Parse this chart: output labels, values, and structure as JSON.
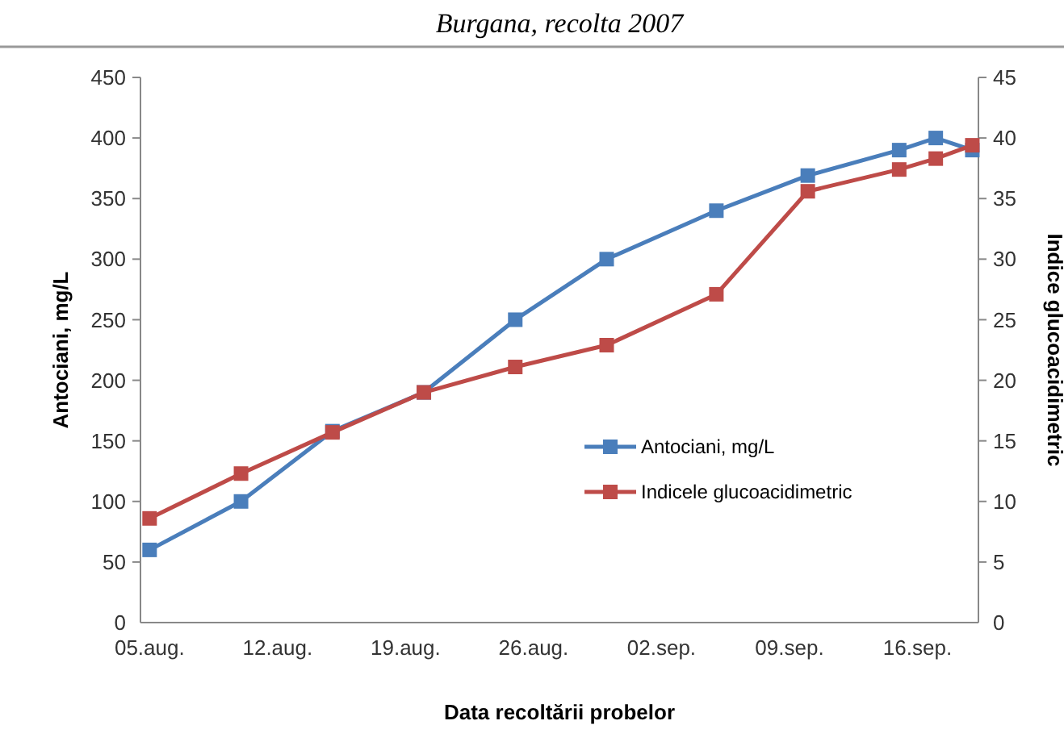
{
  "chart_data": {
    "type": "line",
    "title": "Burgana, recolta 2007",
    "xlabel": "Data recoltării probelor",
    "ylabel": "Antociani, mg/L",
    "y2label": "Indice glucoacidimetric",
    "x": [
      "2007-08-05",
      "2007-08-10",
      "2007-08-15",
      "2007-08-20",
      "2007-08-25",
      "2007-08-30",
      "2007-09-05",
      "2007-09-10",
      "2007-09-15",
      "2007-09-17",
      "2007-09-19"
    ],
    "series": [
      {
        "name": "Antociani, mg/L",
        "color": "#4a7ebb",
        "values": [
          60,
          100,
          158,
          190,
          250,
          300,
          340,
          369,
          390,
          400,
          390
        ]
      },
      {
        "name": "Indicele glucoacidimetric",
        "color": "#be4b48",
        "axis": "y2",
        "values": [
          8.6,
          12.3,
          15.7,
          19,
          21.1,
          22.9,
          27.1,
          35.6,
          37.4,
          38.3,
          39.4
        ]
      }
    ],
    "xlim": [
      "2007-08-04T12:00",
      "2007-09-19T08:00"
    ],
    "xticks": [
      {
        "value": "2007-08-05",
        "label": "05.aug."
      },
      {
        "value": "2007-08-12",
        "label": "12.aug."
      },
      {
        "value": "2007-08-19",
        "label": "19.aug."
      },
      {
        "value": "2007-08-26",
        "label": "26.aug."
      },
      {
        "value": "2007-09-02",
        "label": "02.sep."
      },
      {
        "value": "2007-09-09",
        "label": "09.sep."
      },
      {
        "value": "2007-09-16",
        "label": "16.sep."
      }
    ],
    "ylim": [
      0,
      450
    ],
    "yticks": [
      0,
      50,
      100,
      150,
      200,
      250,
      300,
      350,
      400,
      450
    ],
    "y2lim": [
      0,
      45
    ],
    "y2ticks": [
      0,
      5,
      10,
      15,
      20,
      25,
      30,
      35,
      40,
      45
    ],
    "legend": "right",
    "marker": "square",
    "line_style": "solid",
    "grid": false
  }
}
